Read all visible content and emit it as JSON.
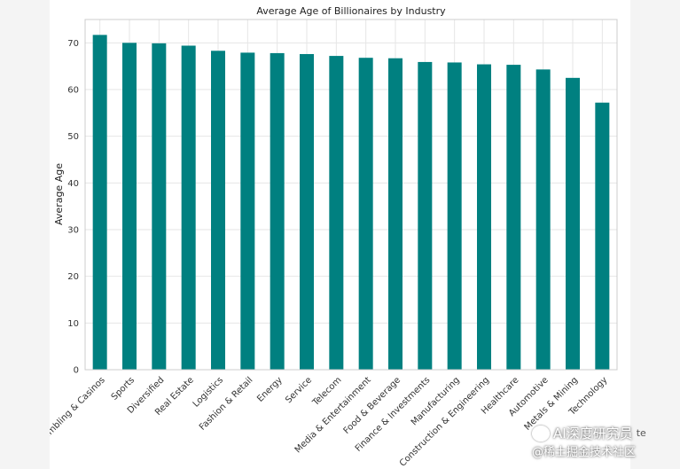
{
  "chart_data": {
    "type": "bar",
    "title": "Average Age of Billionaires by Industry",
    "xlabel": "",
    "ylabel": "Average Age",
    "ylim": [
      0,
      75
    ],
    "yticks": [
      0,
      10,
      20,
      30,
      40,
      50,
      60,
      70
    ],
    "grid": true,
    "bar_color": "#008080",
    "categories": [
      "Gambling & Casinos",
      "Sports",
      "Diversified",
      "Real Estate",
      "Logistics",
      "Fashion & Retail",
      "Energy",
      "Service",
      "Telecom",
      "Media & Entertainment",
      "Food & Beverage",
      "Finance & Investments",
      "Manufacturing",
      "Construction & Engineering",
      "Healthcare",
      "Automotive",
      "Metals & Mining",
      "Technology"
    ],
    "values": [
      71.7,
      70.0,
      69.9,
      69.4,
      68.3,
      67.9,
      67.8,
      67.6,
      67.2,
      66.8,
      66.7,
      65.9,
      65.8,
      65.4,
      65.3,
      64.3,
      62.5,
      57.2
    ]
  },
  "watermark": {
    "line1": "AI深度研究员",
    "line2": "@稀土掘金技术社区",
    "hidden_label": "te"
  }
}
